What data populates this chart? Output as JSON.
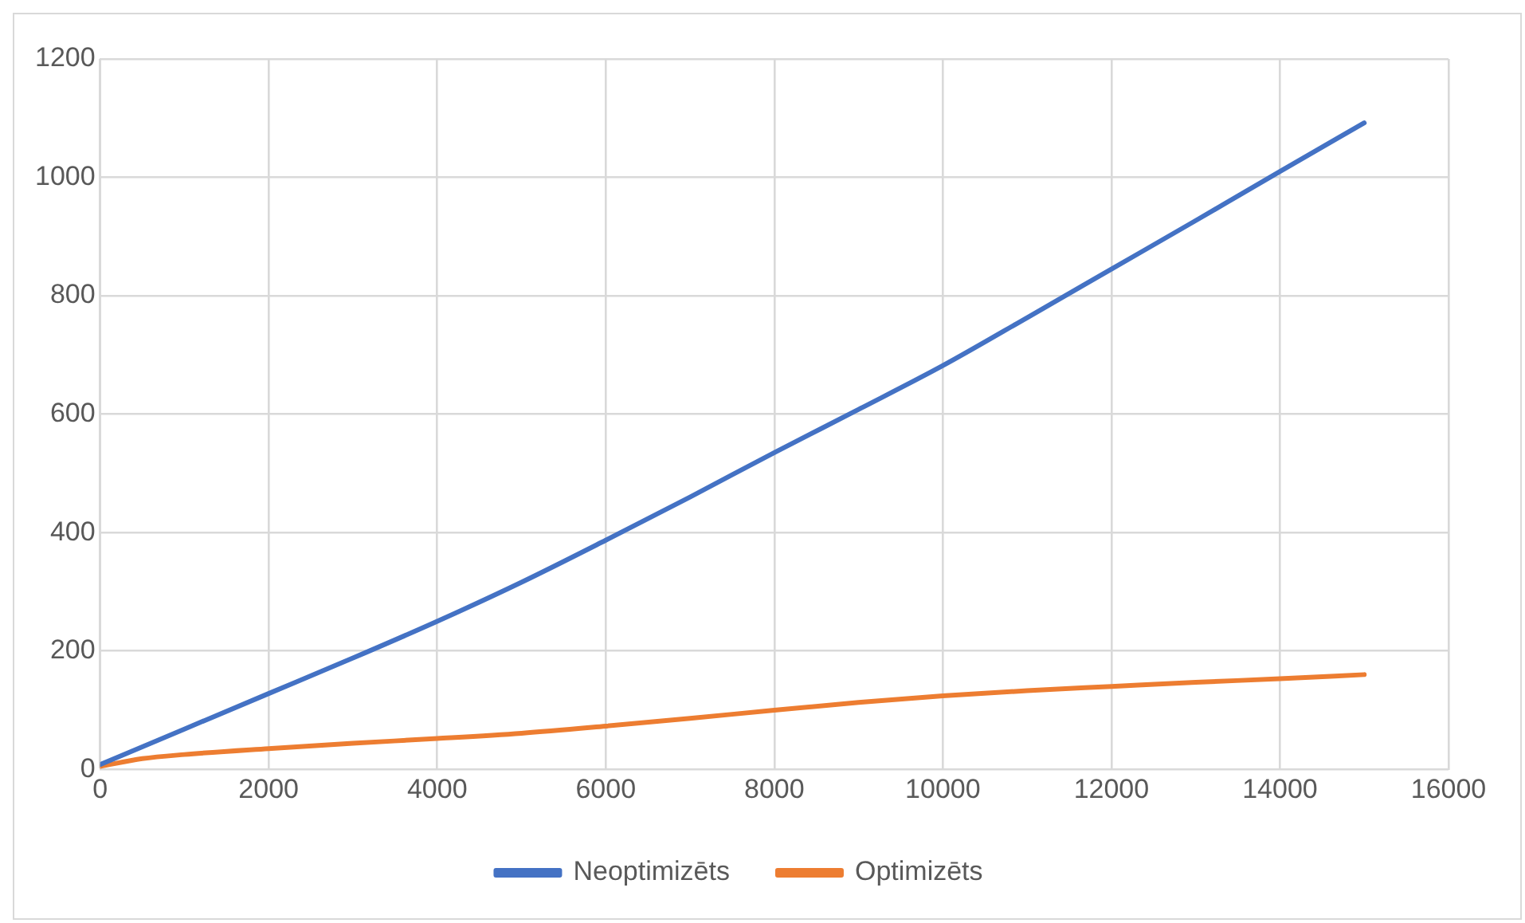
{
  "chart_data": {
    "type": "line",
    "xlim": [
      0,
      16000
    ],
    "xticks": [
      0,
      2000,
      4000,
      6000,
      8000,
      10000,
      12000,
      14000,
      16000
    ],
    "ylim": [
      0,
      1200
    ],
    "yticks": [
      0,
      200,
      400,
      600,
      800,
      1000,
      1200
    ],
    "grid": true,
    "legend": "bottom",
    "marker": "none",
    "series": [
      {
        "name": "Neoptimizēts",
        "color": "#4472c4",
        "x": [
          0,
          1000,
          2000,
          3000,
          4000,
          5000,
          6000,
          7000,
          8000,
          9000,
          10000,
          11000,
          12000,
          13000,
          14000,
          15000
        ],
        "values": [
          8,
          68,
          128,
          188,
          250,
          316,
          387,
          460,
          535,
          608,
          682,
          763,
          845,
          927,
          1010,
          1092
        ]
      },
      {
        "name": "Optimizēts",
        "color": "#ed7d31",
        "x": [
          0,
          500,
          1000,
          2000,
          3000,
          4000,
          5000,
          6000,
          7000,
          8000,
          9000,
          10000,
          11000,
          12000,
          13000,
          14000,
          15000
        ],
        "values": [
          5,
          18,
          25,
          35,
          44,
          52,
          61,
          73,
          86,
          100,
          113,
          124,
          133,
          140,
          147,
          153,
          160
        ]
      }
    ]
  }
}
